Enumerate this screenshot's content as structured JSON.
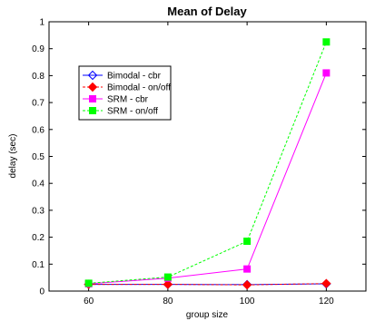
{
  "chart_data": {
    "type": "line",
    "title": "Mean of Delay",
    "xlabel": "group size",
    "ylabel": "delay (sec)",
    "x": [
      60,
      80,
      100,
      120
    ],
    "xlim": [
      50,
      130
    ],
    "ylim": [
      0,
      1
    ],
    "xticks": [
      "60",
      "80",
      "100",
      "120"
    ],
    "yticks": [
      "0",
      "0.1",
      "0.2",
      "0.3",
      "0.4",
      "0.5",
      "0.6",
      "0.7",
      "0.8",
      "0.9",
      "1"
    ],
    "grid": false,
    "legend_position": "upper-left",
    "series": [
      {
        "name": "Bimodal - cbr",
        "values": [
          0.025,
          0.025,
          0.024,
          0.027
        ],
        "color": "#0000ff",
        "dash": "solid",
        "marker": "diamond-open"
      },
      {
        "name": "Bimodal - on/off",
        "values": [
          0.025,
          0.025,
          0.023,
          0.028
        ],
        "color": "#ff0000",
        "dash": "dashed",
        "marker": "diamond-filled"
      },
      {
        "name": "SRM - cbr",
        "values": [
          0.027,
          0.048,
          0.082,
          0.81
        ],
        "color": "#ff00ff",
        "dash": "solid",
        "marker": "square-filled"
      },
      {
        "name": "SRM - on/off",
        "values": [
          0.029,
          0.052,
          0.185,
          0.925
        ],
        "color": "#00ff00",
        "dash": "dashed",
        "marker": "square-filled"
      }
    ]
  }
}
